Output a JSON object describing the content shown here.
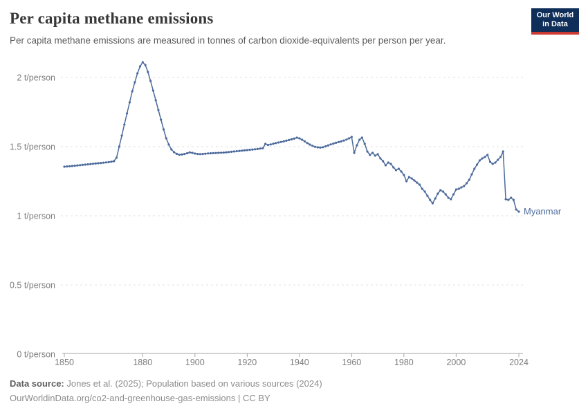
{
  "header": {
    "title": "Per capita methane emissions",
    "subtitle": "Per capita methane emissions are measured in tonnes of carbon dioxide-equivalents per person per year.",
    "logo": {
      "line1": "Our World",
      "line2": "in Data"
    }
  },
  "chart_data": {
    "type": "line",
    "title": "Per capita methane emissions",
    "entity_label": "Myanmar",
    "xlim": [
      1850,
      2024
    ],
    "ylim": [
      0,
      2.15
    ],
    "grid": true,
    "x_ticks": [
      "1850",
      "1880",
      "1900",
      "1920",
      "1940",
      "1960",
      "1980",
      "2000",
      "2024"
    ],
    "x_tick_years": [
      1850,
      1880,
      1900,
      1920,
      1940,
      1960,
      1980,
      2000,
      2024
    ],
    "y_ticks": [
      {
        "value": 0,
        "label": "0 t/person"
      },
      {
        "value": 0.5,
        "label": "0.5 t/person"
      },
      {
        "value": 1,
        "label": "1 t/person"
      },
      {
        "value": 1.5,
        "label": "1.5 t/person"
      },
      {
        "value": 2,
        "label": "2 t/person"
      }
    ],
    "series": [
      {
        "name": "Myanmar",
        "start_year": 1850,
        "end_year": 2024,
        "values": [
          1.355,
          1.357,
          1.358,
          1.36,
          1.362,
          1.364,
          1.366,
          1.368,
          1.37,
          1.372,
          1.374,
          1.376,
          1.378,
          1.38,
          1.382,
          1.384,
          1.386,
          1.388,
          1.391,
          1.395,
          1.42,
          1.5,
          1.58,
          1.66,
          1.74,
          1.82,
          1.9,
          1.965,
          2.03,
          2.08,
          2.11,
          2.09,
          2.04,
          1.975,
          1.905,
          1.835,
          1.765,
          1.695,
          1.625,
          1.56,
          1.515,
          1.48,
          1.46,
          1.448,
          1.441,
          1.443,
          1.447,
          1.452,
          1.458,
          1.455,
          1.45,
          1.447,
          1.446,
          1.447,
          1.449,
          1.451,
          1.452,
          1.453,
          1.454,
          1.455,
          1.456,
          1.457,
          1.459,
          1.461,
          1.463,
          1.465,
          1.467,
          1.469,
          1.471,
          1.473,
          1.475,
          1.477,
          1.479,
          1.481,
          1.483,
          1.486,
          1.489,
          1.52,
          1.512,
          1.516,
          1.521,
          1.526,
          1.53,
          1.534,
          1.538,
          1.543,
          1.548,
          1.553,
          1.558,
          1.565,
          1.56,
          1.55,
          1.538,
          1.526,
          1.515,
          1.506,
          1.499,
          1.495,
          1.493,
          1.496,
          1.502,
          1.509,
          1.516,
          1.522,
          1.528,
          1.533,
          1.538,
          1.544,
          1.551,
          1.56,
          1.57,
          1.455,
          1.51,
          1.55,
          1.565,
          1.52,
          1.465,
          1.44,
          1.455,
          1.435,
          1.445,
          1.415,
          1.395,
          1.365,
          1.385,
          1.375,
          1.35,
          1.33,
          1.34,
          1.32,
          1.295,
          1.25,
          1.28,
          1.27,
          1.255,
          1.24,
          1.225,
          1.195,
          1.175,
          1.145,
          1.115,
          1.09,
          1.125,
          1.16,
          1.185,
          1.175,
          1.155,
          1.13,
          1.12,
          1.155,
          1.19,
          1.195,
          1.205,
          1.215,
          1.235,
          1.26,
          1.3,
          1.34,
          1.37,
          1.4,
          1.415,
          1.425,
          1.44,
          1.39,
          1.375,
          1.385,
          1.405,
          1.425,
          1.465,
          1.12,
          1.115,
          1.13,
          1.115,
          1.045,
          1.03
        ]
      }
    ],
    "line_color": "#4c6a9c",
    "entity_label_color": "#4c6a9c"
  },
  "footer": {
    "datasource_label": "Data source:",
    "datasource_text": " Jones et al. (2025); Population based on various sources (2024)",
    "url_line": "OurWorldinData.org/co2-and-greenhouse-gas-emissions | CC BY"
  },
  "colors": {
    "line": "#4c6a9c",
    "gridline": "#e2e2e2",
    "axis": "#a5a5a5",
    "tick_text": "#7d7d7d",
    "logo_navy": "#0f2e59",
    "logo_red": "#cc3b33"
  }
}
